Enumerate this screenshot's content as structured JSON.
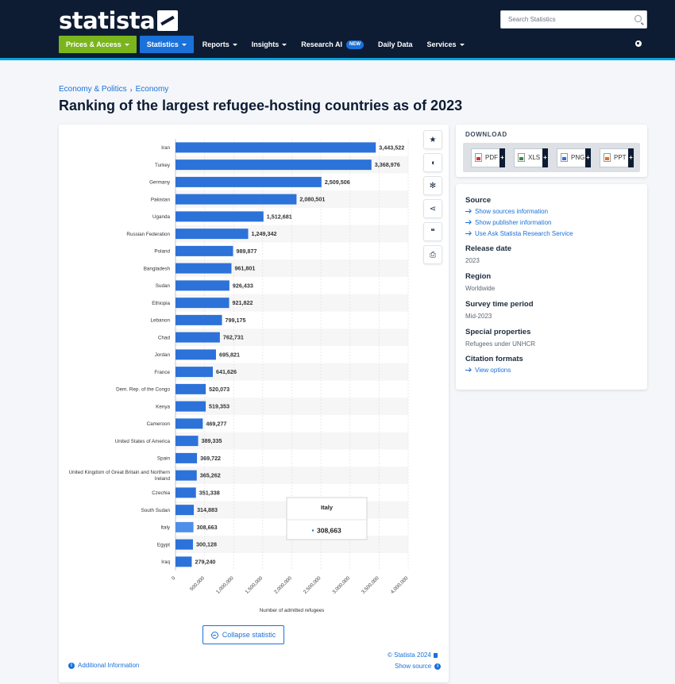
{
  "header": {
    "logo_text": "statista",
    "search_placeholder": "Search Statistics",
    "nav": [
      {
        "label": "Prices & Access"
      },
      {
        "label": "Statistics"
      },
      {
        "label": "Reports"
      },
      {
        "label": "Insights"
      },
      {
        "label": "Research AI",
        "badge": "NEW"
      },
      {
        "label": "Daily Data"
      },
      {
        "label": "Services"
      }
    ]
  },
  "breadcrumb": [
    "Economy & Politics",
    "Economy"
  ],
  "page_title": "Ranking of the largest refugee-hosting countries as of 2023",
  "chart_data": {
    "type": "bar",
    "orientation": "horizontal",
    "categories": [
      "Iran",
      "Turkey",
      "Germany",
      "Pakistan",
      "Uganda",
      "Russian Federation",
      "Poland",
      "Bangladesh",
      "Sudan",
      "Ethiopia",
      "Lebanon",
      "Chad",
      "Jordan",
      "France",
      "Dem. Rep. of the Congo",
      "Kenya",
      "Cameroon",
      "United States of America",
      "Spain",
      "United Kingdom of Great Britain and Northern Ireland",
      "Czechia",
      "South Sudan",
      "Italy",
      "Egypt",
      "Iraq"
    ],
    "values": [
      3443522,
      3368976,
      2509506,
      2080501,
      1512681,
      1249342,
      989877,
      961801,
      926433,
      921822,
      799175,
      762731,
      695821,
      641626,
      520073,
      519353,
      469277,
      389335,
      369722,
      365262,
      351338,
      314883,
      308663,
      300128,
      279240
    ],
    "value_labels": [
      "3,443,522",
      "3,368,976",
      "2,509,506",
      "2,080,501",
      "1,512,681",
      "1,249,342",
      "989,877",
      "961,801",
      "926,433",
      "921,822",
      "799,175",
      "762,731",
      "695,821",
      "641,626",
      "520,073",
      "519,353",
      "469,277",
      "389,335",
      "369,722",
      "365,262",
      "351,338",
      "314,883",
      "308,663",
      "300,128",
      "279,240"
    ],
    "xlabel": "Number of admitted refugees",
    "ylabel": "",
    "xlim": [
      0,
      4000000
    ],
    "x_ticks": [
      0,
      500000,
      1000000,
      1500000,
      2000000,
      2500000,
      3000000,
      3500000,
      4000000
    ],
    "x_tick_labels": [
      "0",
      "500,000",
      "1,000,000",
      "1,500,000",
      "2,000,000",
      "2,500,000",
      "3,000,000",
      "3,500,000",
      "4,000,000"
    ],
    "bar_color": "#2c72d8",
    "highlight_color": "#4f8fe8",
    "highlighted_index": 22,
    "tooltip": {
      "title": "Italy",
      "value": "308,663"
    },
    "grid": "vertical"
  },
  "chart_footer": {
    "collapse_label": "Collapse statistic",
    "copyright": "© Statista 2024",
    "additional_info": "Additional Information",
    "show_source": "Show source"
  },
  "download": {
    "title": "DOWNLOAD",
    "formats": [
      "PDF",
      "XLS",
      "PNG",
      "PPT"
    ]
  },
  "source": {
    "source_heading": "Source",
    "links": [
      "Show sources information",
      "Show publisher information",
      "Use Ask Statista Research Service"
    ],
    "release_heading": "Release date",
    "release_value": "2023",
    "region_heading": "Region",
    "region_value": "Worldwide",
    "survey_heading": "Survey time period",
    "survey_value": "Mid-2023",
    "special_heading": "Special properties",
    "special_value": "Refugees under UNHCR",
    "citation_heading": "Citation formats",
    "citation_link": "View options"
  },
  "tools": [
    "star-icon",
    "bell-icon",
    "gear-icon",
    "share-icon",
    "quote-icon",
    "print-icon"
  ]
}
